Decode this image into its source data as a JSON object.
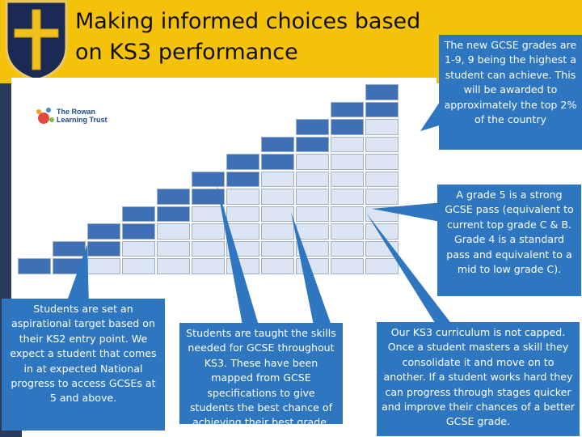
{
  "slide": {
    "title": "Making informed choices based on KS3 performance"
  },
  "logo": {
    "trust_name": "The Rowan Learning Trust"
  },
  "callouts": {
    "top_right": "The new GCSE grades are 1-9, 9 being the highest a student can achieve. This will be awarded to approximately the top 2% of the country",
    "mid_right": "A grade 5 is a strong GCSE pass (equivalent to current top grade C & B. Grade 4 is a standard pass and equivalent to a mid to low grade C).",
    "bottom_left": "Students are set an aspirational target based on their KS2 entry point. We expect a student that comes in at expected National progress to access GCSEs at 5 and above.",
    "bottom_middle": "Students are taught the skills needed for GCSE throughout KS3. These have been mapped from GCSE specifications to give students the best chance of achieving their best grade.",
    "bottom_right": "Our KS3 curriculum is not capped. Once a student masters a skill they consolidate it and move on to another. If a student works hard they can progress through stages quicker and improve their chances of a better GCSE grade."
  },
  "colors": {
    "header": "#f5c20a",
    "callout": "#2e76c0",
    "strip": "#2c3a5c",
    "cell_dark": "#3f6fb5",
    "cell_light": "#dbe5f3"
  }
}
